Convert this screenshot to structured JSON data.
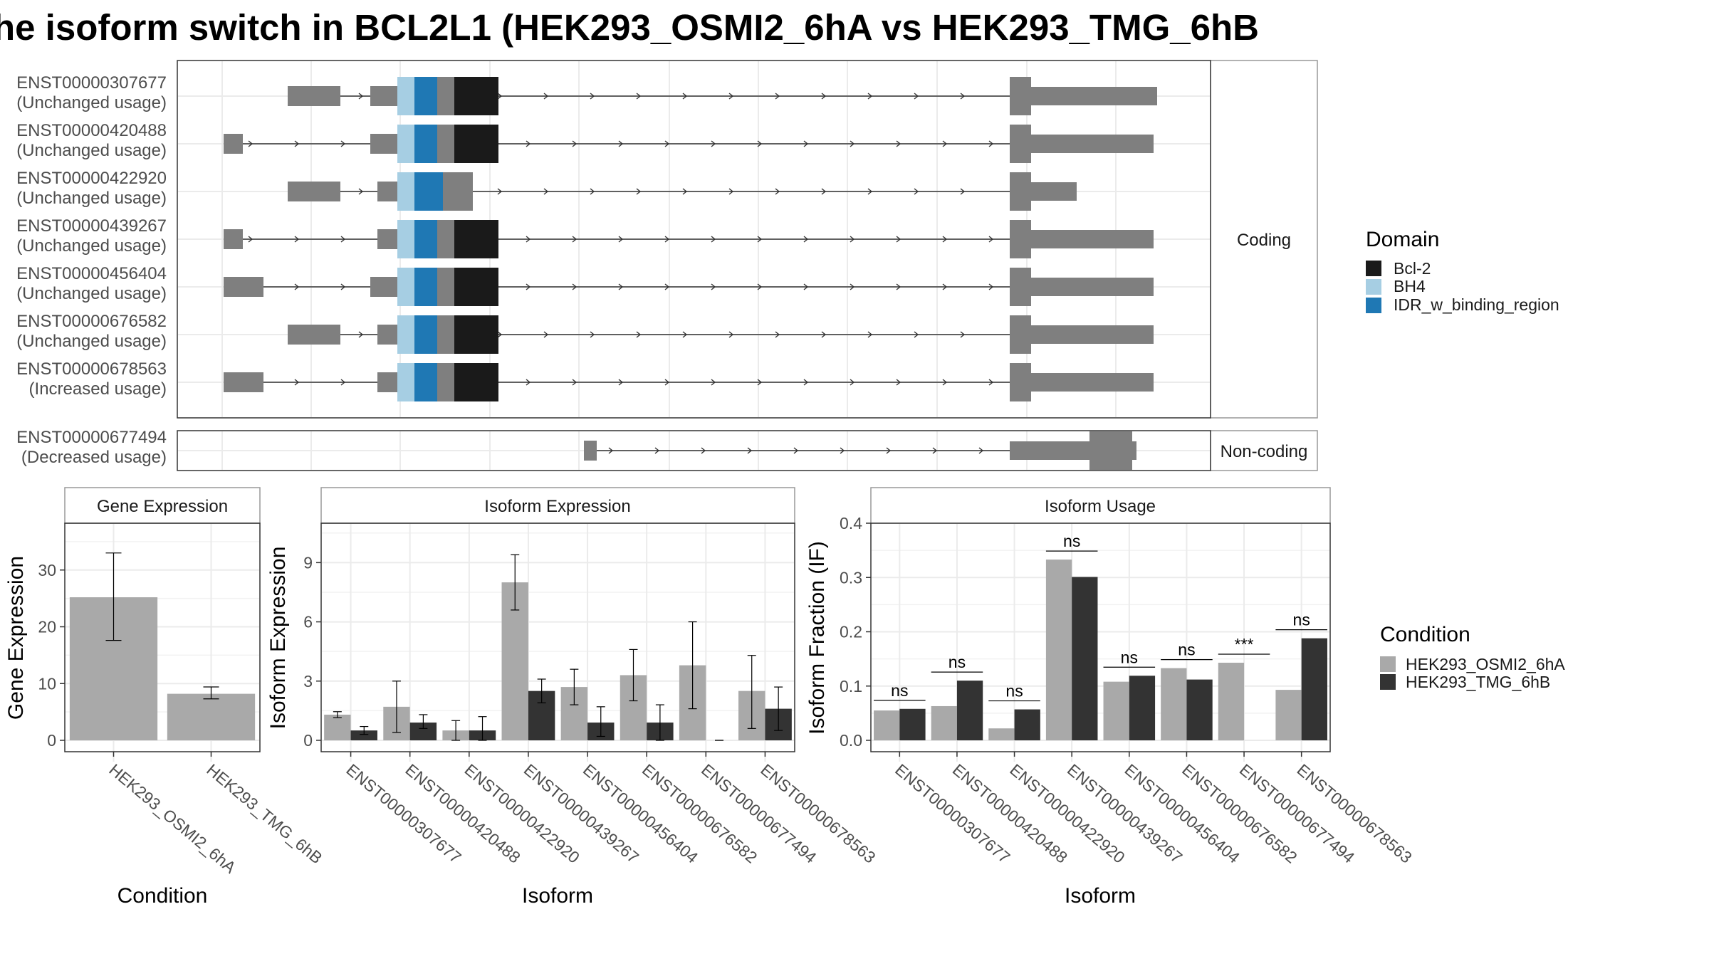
{
  "title": "he isoform switch in BCL2L1 (HEK293_OSMI2_6hA vs HEK293_TMG_6hB",
  "colors": {
    "exon": "#7f7f7f",
    "bcl2": "#1a1a1a",
    "bh4": "#a6cee3",
    "idr": "#1f78b4",
    "cond1": "#a9a9a9",
    "cond2": "#333333"
  },
  "chart_data": [
    {
      "type": "gene-structure",
      "panels": [
        "Coding",
        "Non-coding"
      ],
      "domain_legend": {
        "title": "Domain",
        "entries": [
          "Bcl-2",
          "BH4",
          "IDR_w_binding_region"
        ]
      },
      "transcripts": [
        {
          "id": "ENST00000307677",
          "usage": "(Unchanged usage)",
          "panel": "Coding"
        },
        {
          "id": "ENST00000420488",
          "usage": "(Unchanged usage)",
          "panel": "Coding"
        },
        {
          "id": "ENST00000422920",
          "usage": "(Unchanged usage)",
          "panel": "Coding"
        },
        {
          "id": "ENST00000439267",
          "usage": "(Unchanged usage)",
          "panel": "Coding"
        },
        {
          "id": "ENST00000456404",
          "usage": "(Unchanged usage)",
          "panel": "Coding"
        },
        {
          "id": "ENST00000676582",
          "usage": "(Unchanged usage)",
          "panel": "Coding"
        },
        {
          "id": "ENST00000678563",
          "usage": "(Increased usage)",
          "panel": "Coding"
        },
        {
          "id": "ENST00000677494",
          "usage": "(Decreased usage)",
          "panel": "Non-coding"
        }
      ]
    },
    {
      "type": "bar",
      "title": "Gene Expression",
      "xlabel": "Condition",
      "ylabel": "Gene Expression",
      "ylim": [
        0,
        40
      ],
      "yticks": [
        0,
        10,
        20,
        30
      ],
      "categories": [
        "HEK293_OSMI2_6hA",
        "HEK293_TMG_6hB"
      ],
      "values": [
        25.2,
        8.2
      ],
      "errors": [
        [
          17.6,
          33.0
        ],
        [
          7.3,
          9.4
        ]
      ]
    },
    {
      "type": "bar",
      "title": "Isoform Expression",
      "xlabel": "Isoform",
      "ylabel": "Isoform Expression",
      "ylim": [
        0,
        11.5
      ],
      "yticks": [
        0,
        3,
        6,
        9
      ],
      "categories": [
        "ENST00000307677",
        "ENST00000420488",
        "ENST00000422920",
        "ENST00000439267",
        "ENST00000456404",
        "ENST00000676582",
        "ENST00000677494",
        "ENST00000678563"
      ],
      "series": [
        {
          "name": "HEK293_OSMI2_6hA",
          "values": [
            1.3,
            1.7,
            0.5,
            8.0,
            2.7,
            3.3,
            3.8,
            2.5
          ],
          "errors": [
            [
              1.15,
              1.45
            ],
            [
              0.4,
              3.0
            ],
            [
              0.0,
              1.0
            ],
            [
              6.6,
              9.4
            ],
            [
              1.8,
              3.6
            ],
            [
              2.0,
              4.6
            ],
            [
              1.6,
              6.0
            ],
            [
              0.6,
              4.3
            ]
          ]
        },
        {
          "name": "HEK293_TMG_6hB",
          "values": [
            0.5,
            0.9,
            0.5,
            2.5,
            0.9,
            0.9,
            0.0,
            1.6
          ],
          "errors": [
            [
              0.3,
              0.7
            ],
            [
              0.6,
              1.3
            ],
            [
              0.0,
              1.2
            ],
            [
              1.9,
              3.1
            ],
            [
              0.2,
              1.7
            ],
            [
              0.0,
              1.8
            ],
            [
              0.0,
              0.0
            ],
            [
              0.5,
              2.7
            ]
          ]
        }
      ]
    },
    {
      "type": "bar",
      "title": "Isoform Usage",
      "xlabel": "Isoform",
      "ylabel": "Isoform Fraction (IF)",
      "ylim": [
        0,
        0.4
      ],
      "yticks": [
        "0.0",
        "0.1",
        "0.2",
        "0.3",
        "0.4"
      ],
      "categories": [
        "ENST00000307677",
        "ENST00000420488",
        "ENST00000422920",
        "ENST00000439267",
        "ENST00000456404",
        "ENST00000676582",
        "ENST00000677494",
        "ENST00000678563"
      ],
      "series": [
        {
          "name": "HEK293_OSMI2_6hA",
          "values": [
            0.055,
            0.063,
            0.022,
            0.333,
            0.108,
            0.133,
            0.143,
            0.093
          ]
        },
        {
          "name": "HEK293_TMG_6hB",
          "values": [
            0.058,
            0.11,
            0.057,
            0.301,
            0.119,
            0.112,
            0.0,
            0.188
          ]
        }
      ],
      "significance": [
        "ns",
        "ns",
        "ns",
        "ns",
        "ns",
        "ns",
        "***",
        "ns"
      ]
    }
  ],
  "condition_legend": {
    "title": "Condition",
    "entries": [
      "HEK293_OSMI2_6hA",
      "HEK293_TMG_6hB"
    ]
  }
}
